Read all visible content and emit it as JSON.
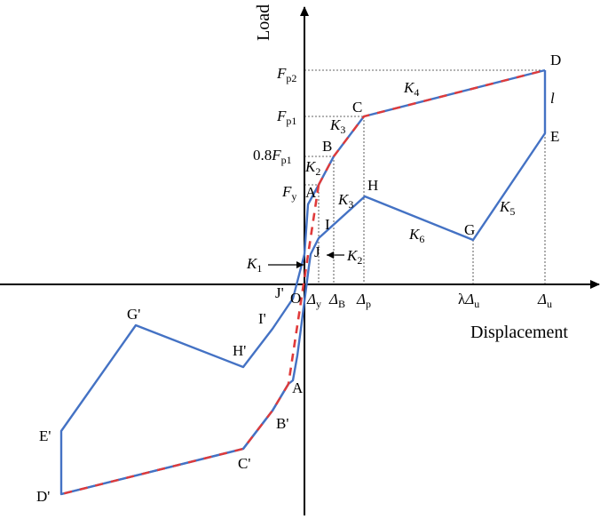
{
  "axes": {
    "y_label": "Load",
    "x_label": "Displacement",
    "origin": "O"
  },
  "load_ticks": {
    "fp2": {
      "main": "F",
      "sub": "p2"
    },
    "fp1": {
      "main": "F",
      "sub": "p1"
    },
    "fp1_08": {
      "prefix": "0.8",
      "main": "F",
      "sub": "p1"
    },
    "fy": {
      "main": "F",
      "sub": "y"
    }
  },
  "disp_ticks": {
    "dy": {
      "main": "Δ",
      "sub": "y"
    },
    "db": {
      "main": "Δ",
      "sub": "B"
    },
    "dp": {
      "main": "Δ",
      "sub": "p"
    },
    "ldu": {
      "prefix": "λ",
      "main": "Δ",
      "sub": "u"
    },
    "du": {
      "main": "Δ",
      "sub": "u"
    }
  },
  "points": {
    "A": "A",
    "B": "B",
    "C": "C",
    "D": "D",
    "E": "E",
    "G": "G",
    "H": "H",
    "I": "I",
    "J": "J",
    "A_p": "A'",
    "B_p": "B'",
    "C_p": "C'",
    "D_p": "D'",
    "E_p": "E'",
    "G_p": "G'",
    "H_p": "H'",
    "I_p": "I'",
    "J_p": "J'"
  },
  "stiffness": {
    "K1": {
      "main": "K",
      "sub": "1"
    },
    "K2a": {
      "main": "K",
      "sub": "2"
    },
    "K2b": {
      "main": "K",
      "sub": "2"
    },
    "K3a": {
      "main": "K",
      "sub": "3"
    },
    "K3b": {
      "main": "K",
      "sub": "3"
    },
    "K4": {
      "main": "K",
      "sub": "4"
    },
    "K5": {
      "main": "K",
      "sub": "5"
    },
    "K6": {
      "main": "K",
      "sub": "6"
    }
  },
  "gap_label": "l",
  "colors": {
    "curve": "#4472C4",
    "dash": "#E03A3A",
    "axis": "#000000"
  }
}
